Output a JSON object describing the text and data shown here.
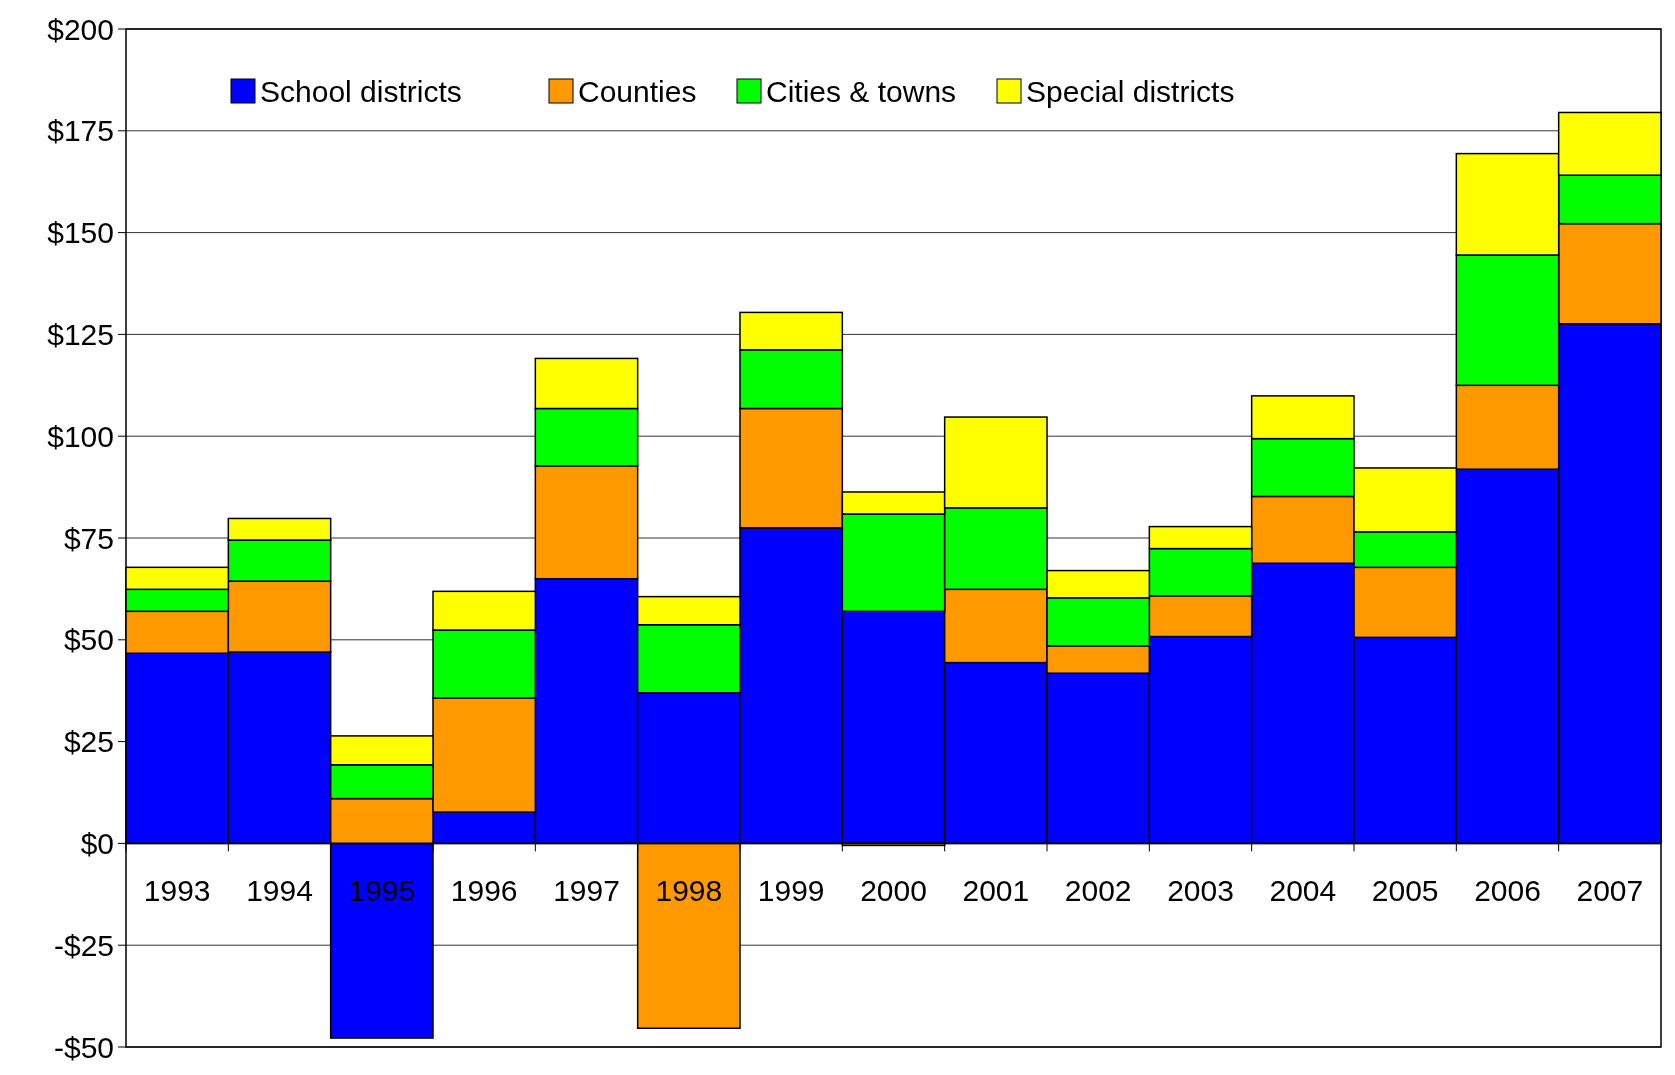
{
  "chart_data": {
    "type": "bar",
    "stacked": true,
    "categories": [
      "1993",
      "1994",
      "1995",
      "1996",
      "1997",
      "1998",
      "1999",
      "2000",
      "2001",
      "2002",
      "2003",
      "2004",
      "2005",
      "2006",
      "2007"
    ],
    "series": [
      {
        "name": "School districts",
        "color": "#0000ff",
        "values": [
          46.7,
          47.0,
          -47.8,
          7.7,
          65.0,
          37.0,
          77.5,
          57.0,
          44.4,
          41.8,
          50.8,
          68.8,
          50.6,
          91.9,
          127.6
        ]
      },
      {
        "name": "Counties",
        "color": "#ff9900",
        "values": [
          10.3,
          17.4,
          11.0,
          28.0,
          27.7,
          -45.4,
          29.3,
          -0.5,
          18.0,
          6.7,
          10.0,
          16.4,
          17.2,
          20.6,
          24.6
        ]
      },
      {
        "name": "Cities & towns",
        "color": "#00ff00",
        "values": [
          5.4,
          10.1,
          8.3,
          16.7,
          14.1,
          16.7,
          14.4,
          23.9,
          20.0,
          11.8,
          11.6,
          14.2,
          8.7,
          32.0,
          11.9
        ]
      },
      {
        "name": "Special districts",
        "color": "#ffff00",
        "values": [
          5.4,
          5.3,
          7.1,
          9.5,
          12.3,
          6.9,
          9.2,
          5.4,
          22.3,
          6.7,
          5.4,
          10.5,
          15.7,
          24.9,
          15.4
        ]
      }
    ],
    "ylim": [
      -50,
      200
    ],
    "yticks": [
      {
        "value": -50,
        "label": "-$50"
      },
      {
        "value": -25,
        "label": "-$25"
      },
      {
        "value": 0,
        "label": "$0"
      },
      {
        "value": 25,
        "label": "$25"
      },
      {
        "value": 50,
        "label": "$50"
      },
      {
        "value": 75,
        "label": "$75"
      },
      {
        "value": 100,
        "label": "$100"
      },
      {
        "value": 125,
        "label": "$125"
      },
      {
        "value": 150,
        "label": "$150"
      },
      {
        "value": 175,
        "label": "$175"
      },
      {
        "value": 200,
        "label": "$200"
      }
    ],
    "grid": "y",
    "legend": "top"
  }
}
